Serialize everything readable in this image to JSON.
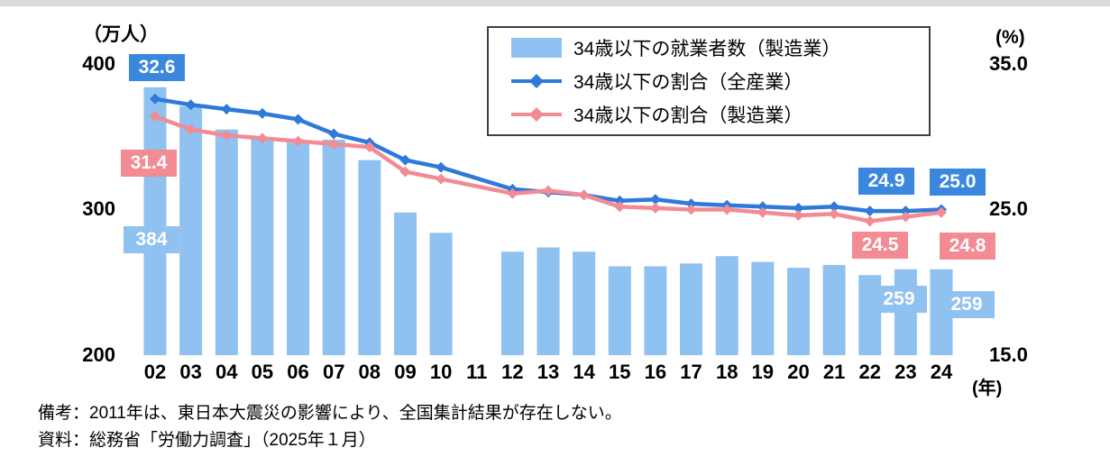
{
  "figure": {
    "notes": [
      "備考：2011年は、東日本大震災の影響により、全国集計結果が存在しない。",
      "資料：総務省「労働力調査」（2025年１月）"
    ]
  },
  "axes": {
    "left_title": "（万人）",
    "right_title": "(%)",
    "x_unit": "(年)",
    "left_ticks": [
      "400",
      "300",
      "200"
    ],
    "right_ticks": [
      "35.0",
      "25.0",
      "15.0"
    ]
  },
  "legend": [
    {
      "label": "34歳以下の就業者数（製造業）",
      "type": "bar",
      "color": "#8FC2F0"
    },
    {
      "label": "34歳以下の割合（全産業）",
      "type": "line",
      "color": "#2E79D9"
    },
    {
      "label": "34歳以下の割合（製造業）",
      "type": "line",
      "color": "#F28B93"
    }
  ],
  "annotations": [
    {
      "text": "32.6",
      "series": "34歳以下の割合（全産業）",
      "category": "02"
    },
    {
      "text": "31.4",
      "series": "34歳以下の割合（製造業）",
      "category": "02"
    },
    {
      "text": "384",
      "series": "34歳以下の就業者数（製造業）",
      "category": "02"
    },
    {
      "text": "24.9",
      "series": "34歳以下の割合（全産業）",
      "category": "23"
    },
    {
      "text": "25.0",
      "series": "34歳以下の割合（全産業）",
      "category": "24"
    },
    {
      "text": "24.5",
      "series": "34歳以下の割合（製造業）",
      "category": "23"
    },
    {
      "text": "24.8",
      "series": "34歳以下の割合（製造業）",
      "category": "24"
    },
    {
      "text": "259",
      "series": "34歳以下の就業者数（製造業）",
      "category": "23"
    },
    {
      "text": "259",
      "series": "34歳以下の就業者数（製造業）",
      "category": "24"
    }
  ],
  "colors": {
    "bar": "#8FC2F0",
    "line_all_industries": "#2E79D9",
    "line_manufacturing": "#F28B93",
    "label_box_blue": "#3B87DE",
    "label_box_pink": "#F28B93",
    "label_box_bar_blue": "#8FC2F0",
    "top_strip": "#d9d9d9"
  },
  "chart_data": {
    "type": "bar",
    "subtype": "bar+line combo, dual axis",
    "title": "",
    "categories": [
      "02",
      "03",
      "04",
      "05",
      "06",
      "07",
      "08",
      "09",
      "10",
      "11",
      "12",
      "13",
      "14",
      "15",
      "16",
      "17",
      "18",
      "19",
      "20",
      "21",
      "22",
      "23",
      "24"
    ],
    "left_axis": {
      "label": "（万人）",
      "min": 200,
      "max": 400,
      "ticks": [
        200,
        300,
        400
      ]
    },
    "right_axis": {
      "label": "(%)",
      "min": 15,
      "max": 35,
      "ticks": [
        15.0,
        25.0,
        35.0
      ]
    },
    "legend_position": "top",
    "grid": false,
    "series": [
      {
        "name": "34歳以下の就業者数（製造業）",
        "type": "bar",
        "axis": "left",
        "unit": "万人",
        "color": "#8FC2F0",
        "values": [
          384,
          371,
          355,
          349,
          346,
          348,
          334,
          298,
          284,
          null,
          271,
          274,
          271,
          261,
          261,
          263,
          268,
          264,
          260,
          262,
          255,
          259,
          259
        ]
      },
      {
        "name": "34歳以下の割合（全産業）",
        "type": "line",
        "axis": "right",
        "unit": "%",
        "color": "#2E79D9",
        "values": [
          32.6,
          32.2,
          31.9,
          31.6,
          31.2,
          30.2,
          29.6,
          28.4,
          27.9,
          null,
          26.4,
          26.2,
          26.0,
          25.6,
          25.7,
          25.4,
          25.3,
          25.2,
          25.1,
          25.2,
          24.9,
          24.9,
          25.0
        ]
      },
      {
        "name": "34歳以下の割合（製造業）",
        "type": "line",
        "axis": "right",
        "unit": "%",
        "color": "#F28B93",
        "values": [
          31.4,
          30.5,
          30.1,
          29.9,
          29.7,
          29.5,
          29.3,
          27.6,
          27.1,
          null,
          26.1,
          26.3,
          26.0,
          25.2,
          25.1,
          25.0,
          25.0,
          24.8,
          24.6,
          24.7,
          24.2,
          24.5,
          24.8
        ]
      }
    ]
  }
}
